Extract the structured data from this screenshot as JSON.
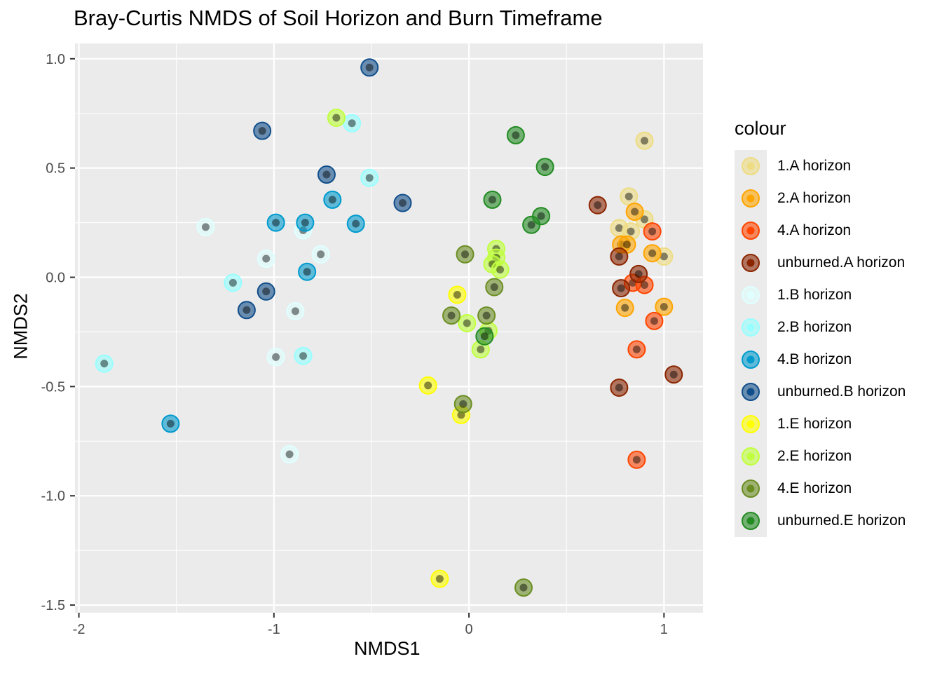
{
  "chart_data": {
    "type": "scatter",
    "title": "Bray-Curtis NMDS of Soil Horizon and Burn Timeframe",
    "xlabel": "NMDS1",
    "ylabel": "NMDS2",
    "xlim": [
      -2.02,
      1.2
    ],
    "ylim": [
      -1.535,
      1.07
    ],
    "xticks": [
      -2,
      -1,
      0,
      1
    ],
    "yticks": [
      -1.5,
      -1.0,
      -0.5,
      0.0,
      0.5,
      1.0
    ],
    "xtick_labels": [
      "-2",
      "-1",
      "0",
      "1"
    ],
    "ytick_labels": [
      "-1.5",
      "-1.0",
      "-0.5",
      "0.0",
      "0.5",
      "1.0"
    ],
    "grid": true,
    "legend_title": "colour",
    "legend_position": "right",
    "series": [
      {
        "name": "1.A horizon",
        "color": "#eedc82",
        "points": [
          [
            0.9,
            0.625
          ],
          [
            0.82,
            0.37
          ],
          [
            0.77,
            0.225
          ],
          [
            0.83,
            0.21
          ],
          [
            0.9,
            0.265
          ],
          [
            1.0,
            0.095
          ]
        ]
      },
      {
        "name": "2.A horizon",
        "color": "#ffa500",
        "points": [
          [
            0.85,
            0.3
          ],
          [
            0.78,
            0.15
          ],
          [
            0.81,
            0.15
          ],
          [
            0.94,
            0.11
          ],
          [
            1.0,
            -0.135
          ],
          [
            0.8,
            -0.14
          ]
        ]
      },
      {
        "name": "4.A horizon",
        "color": "#ff4500",
        "points": [
          [
            0.94,
            0.21
          ],
          [
            0.84,
            -0.025
          ],
          [
            0.9,
            -0.035
          ],
          [
            0.95,
            -0.2
          ],
          [
            0.86,
            -0.33
          ],
          [
            0.86,
            -0.835
          ]
        ]
      },
      {
        "name": "unburned.A horizon",
        "color": "#8b2500",
        "points": [
          [
            0.66,
            0.33
          ],
          [
            0.77,
            0.095
          ],
          [
            0.87,
            0.015
          ],
          [
            0.78,
            -0.05
          ],
          [
            1.05,
            -0.445
          ],
          [
            0.77,
            -0.505
          ]
        ]
      },
      {
        "name": "1.B horizon",
        "color": "#e0ffff",
        "points": [
          [
            -1.35,
            0.23
          ],
          [
            -1.04,
            0.085
          ],
          [
            -0.85,
            0.215
          ],
          [
            -0.76,
            0.105
          ],
          [
            -0.89,
            -0.155
          ],
          [
            -0.99,
            -0.365
          ],
          [
            -0.92,
            -0.81
          ]
        ]
      },
      {
        "name": "2.B horizon",
        "color": "#97ffff",
        "points": [
          [
            -0.6,
            0.705
          ],
          [
            -0.51,
            0.455
          ],
          [
            -1.21,
            -0.025
          ],
          [
            -0.85,
            -0.36
          ],
          [
            -1.87,
            -0.395
          ]
        ]
      },
      {
        "name": "4.B horizon",
        "color": "#009acd",
        "points": [
          [
            -0.7,
            0.355
          ],
          [
            -0.99,
            0.25
          ],
          [
            -0.84,
            0.25
          ],
          [
            -0.58,
            0.245
          ],
          [
            -0.83,
            0.025
          ],
          [
            -1.53,
            -0.67
          ]
        ]
      },
      {
        "name": "unburned.B horizon",
        "color": "#104e8b",
        "points": [
          [
            -0.51,
            0.96
          ],
          [
            -1.06,
            0.67
          ],
          [
            -0.73,
            0.47
          ],
          [
            -0.34,
            0.34
          ],
          [
            -1.04,
            -0.065
          ],
          [
            -1.14,
            -0.15
          ]
        ]
      },
      {
        "name": "1.E horizon",
        "color": "#ffff00",
        "points": [
          [
            -0.06,
            -0.08
          ],
          [
            -0.21,
            -0.495
          ],
          [
            -0.04,
            -0.63
          ],
          [
            -0.15,
            -1.38
          ]
        ]
      },
      {
        "name": "2.E horizon",
        "color": "#c0ff3e",
        "points": [
          [
            -0.68,
            0.73
          ],
          [
            0.14,
            0.13
          ],
          [
            0.14,
            0.09
          ],
          [
            0.12,
            0.06
          ],
          [
            0.16,
            0.035
          ],
          [
            -0.01,
            -0.21
          ],
          [
            0.1,
            -0.245
          ],
          [
            0.06,
            -0.33
          ]
        ]
      },
      {
        "name": "4.E horizon",
        "color": "#6b8e23",
        "points": [
          [
            -0.02,
            0.105
          ],
          [
            0.13,
            -0.045
          ],
          [
            -0.09,
            -0.175
          ],
          [
            0.09,
            -0.175
          ],
          [
            -0.03,
            -0.58
          ],
          [
            0.28,
            -1.42
          ]
        ]
      },
      {
        "name": "unburned.E horizon",
        "color": "#228b22",
        "points": [
          [
            0.24,
            0.65
          ],
          [
            0.39,
            0.505
          ],
          [
            0.12,
            0.355
          ],
          [
            0.37,
            0.28
          ],
          [
            0.32,
            0.24
          ],
          [
            0.08,
            -0.27
          ]
        ]
      }
    ]
  }
}
